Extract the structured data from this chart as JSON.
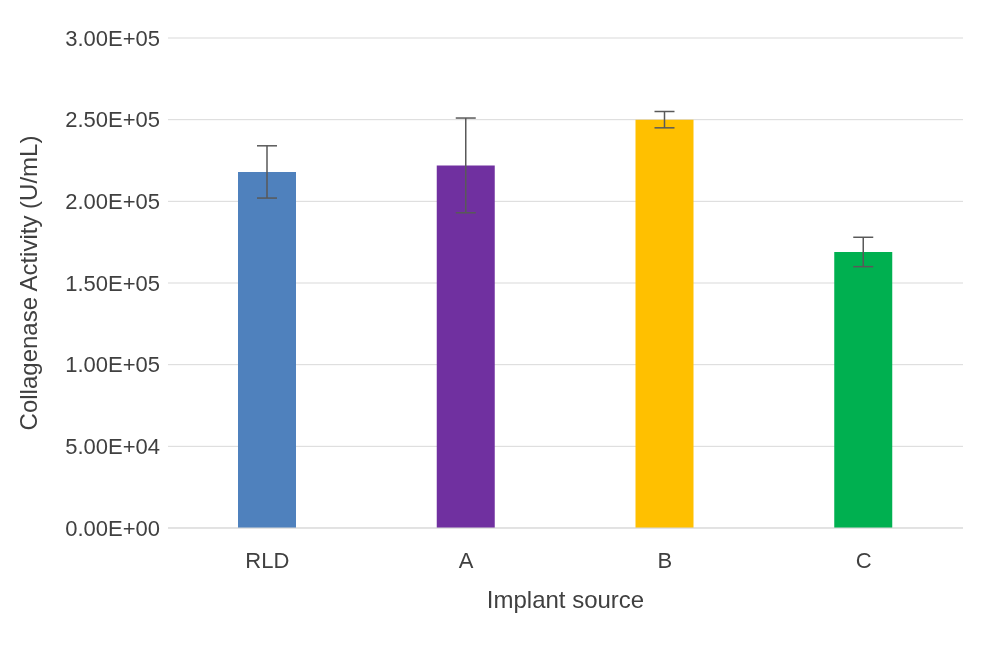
{
  "chart_data": {
    "type": "bar",
    "xlabel": "Implant source",
    "ylabel": "Collagenase Activity (U/mL)",
    "categories": [
      "RLD",
      "A",
      "B",
      "C"
    ],
    "values": [
      218000,
      222000,
      250000,
      169000
    ],
    "colors": [
      "#4f81bd",
      "#7030a0",
      "#ffc000",
      "#00b050"
    ],
    "errors": [
      16000,
      29000,
      5000,
      9000
    ],
    "ylim": [
      0,
      300000
    ],
    "yticks": [
      {
        "value": 0,
        "label": "0.00E+00"
      },
      {
        "value": 50000,
        "label": "5.00E+04"
      },
      {
        "value": 100000,
        "label": "1.00E+05"
      },
      {
        "value": 150000,
        "label": "1.50E+05"
      },
      {
        "value": 200000,
        "label": "2.00E+05"
      },
      {
        "value": 250000,
        "label": "2.50E+05"
      },
      {
        "value": 300000,
        "label": "3.00E+05"
      }
    ],
    "grid": "y",
    "legend": false
  }
}
